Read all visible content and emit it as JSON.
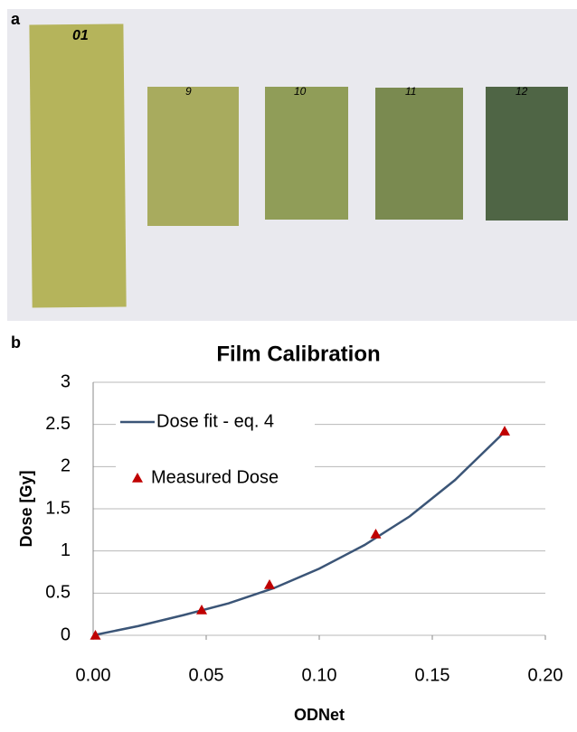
{
  "panels": {
    "a": "a",
    "b": "b"
  },
  "films": [
    "01",
    "9",
    "10",
    "11",
    "12"
  ],
  "chart_data": {
    "type": "line",
    "title": "Film Calibration",
    "x_label": "ODNet",
    "y_label": "Dose [Gy]",
    "xlim": [
      0,
      0.2
    ],
    "ylim": [
      0,
      3
    ],
    "xticks": [
      {
        "value": 0,
        "label": "0.00"
      },
      {
        "value": 0.05,
        "label": "0.05"
      },
      {
        "value": 0.1,
        "label": "0.10"
      },
      {
        "value": 0.15,
        "label": "0.15"
      },
      {
        "value": 0.2,
        "label": "0.20"
      }
    ],
    "yticks": [
      0,
      0.5,
      1,
      1.5,
      2,
      2.5,
      3
    ],
    "grid": true,
    "legend": "upper left",
    "series": [
      {
        "name": "Dose fit - eq. 4",
        "color": "#3b5577",
        "style": "line",
        "x": [
          0,
          0.02,
          0.04,
          0.06,
          0.08,
          0.1,
          0.12,
          0.14,
          0.16,
          0.18,
          0.182
        ],
        "values": [
          0,
          0.11,
          0.24,
          0.38,
          0.56,
          0.79,
          1.07,
          1.41,
          1.84,
          2.36,
          2.42
        ]
      },
      {
        "name": "Measured Dose",
        "color": "#c00000",
        "style": "marker",
        "x": [
          0.001,
          0.048,
          0.078,
          0.125,
          0.182
        ],
        "values": [
          0,
          0.3,
          0.6,
          1.2,
          2.42
        ]
      }
    ]
  }
}
